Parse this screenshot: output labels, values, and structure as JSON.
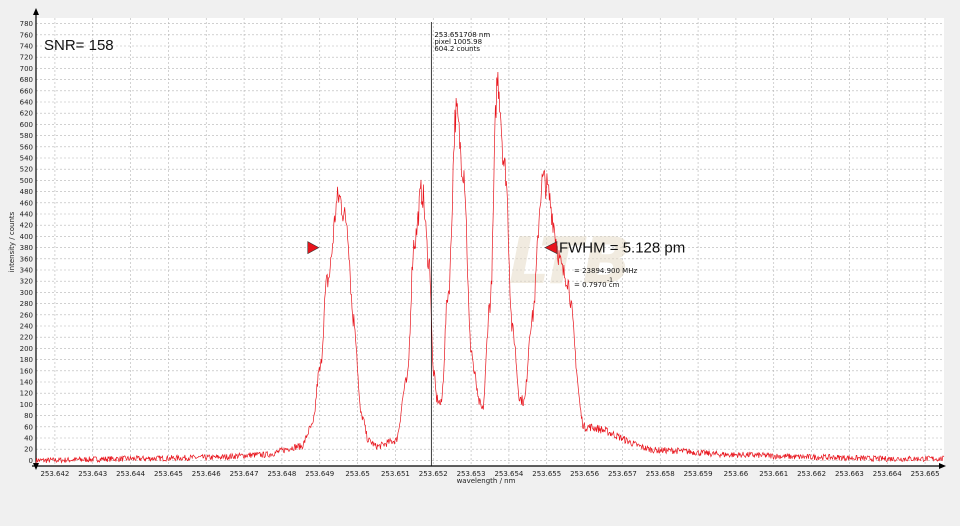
{
  "chart_data": {
    "type": "line",
    "title": "",
    "xlabel": "wavelength / nm",
    "ylabel": "intensity / counts",
    "xlim": [
      253.6415,
      253.6655
    ],
    "ylim": [
      -10,
      790
    ],
    "grid": true,
    "x_ticks": [
      "253.642",
      "253.643",
      "253.644",
      "253.645",
      "253.646",
      "253.647",
      "253.648",
      "253.649",
      "253.65",
      "253.651",
      "253.652",
      "253.653",
      "253.654",
      "253.655",
      "253.656",
      "253.657",
      "253.658",
      "253.659",
      "253.66",
      "253.661",
      "253.662",
      "253.663",
      "253.664",
      "253.665"
    ],
    "y_ticks": [
      "0",
      "20",
      "40",
      "60",
      "80",
      "100",
      "120",
      "140",
      "160",
      "180",
      "200",
      "220",
      "240",
      "260",
      "280",
      "300",
      "320",
      "340",
      "360",
      "380",
      "400",
      "420",
      "440",
      "460",
      "480",
      "500",
      "520",
      "540",
      "560",
      "580",
      "600",
      "620",
      "640",
      "660",
      "680",
      "700",
      "720",
      "740",
      "760",
      "780"
    ],
    "series": [
      {
        "color": "#e8141c",
        "x": [
          253.6415,
          253.644,
          253.646,
          253.6475,
          253.6485,
          253.6488,
          253.649,
          253.6492,
          253.6495,
          253.6497,
          253.6499,
          253.6501,
          253.6503,
          253.6505,
          253.651,
          253.6513,
          253.6515,
          253.6517,
          253.6519,
          253.652,
          253.6521,
          253.6522,
          253.6524,
          253.6526,
          253.6528,
          253.653,
          253.6531,
          253.6532,
          253.6533,
          253.6535,
          253.6537,
          253.6539,
          253.6541,
          253.6543,
          253.6544,
          253.6546,
          253.6549,
          253.6555,
          253.656,
          253.658,
          253.66,
          253.662,
          253.664
        ],
        "y": [
          0,
          3,
          5,
          10,
          25,
          60,
          160,
          320,
          470,
          430,
          250,
          80,
          35,
          25,
          35,
          140,
          390,
          480,
          350,
          160,
          110,
          100,
          300,
          620,
          520,
          200,
          150,
          105,
          90,
          280,
          680,
          520,
          230,
          110,
          105,
          250,
          500,
          330,
          60,
          18,
          10,
          6,
          3
        ]
      }
    ],
    "annotations": {
      "snr": "SNR= 158",
      "fwhm": "FWHM = 5.128 pm",
      "cursor_wavelength": "253.651708 nm",
      "cursor_pixel": "pixel   1005.98",
      "cursor_counts": "604.2 counts",
      "freq_width": "= 23894.900 MHz",
      "wn_width": "= 0.7970 cm",
      "wn_exp": "-1"
    },
    "cursor_x": 253.65195,
    "fwhm_level": 380,
    "fwhm_markers_x": [
      253.649,
      253.6549
    ]
  }
}
